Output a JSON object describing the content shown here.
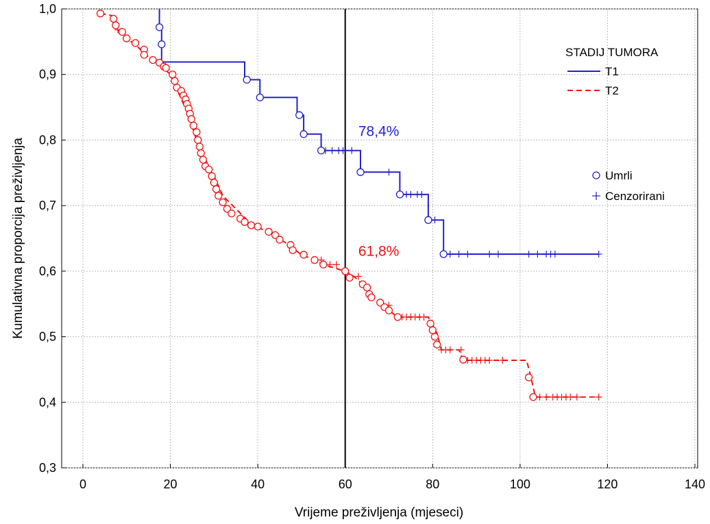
{
  "chart_data": {
    "type": "line",
    "title": "",
    "xlabel": "Vrijeme preživljenja (mjeseci)",
    "ylabel": "Kumulativna proporcija preživljenja",
    "xlim": [
      0,
      140
    ],
    "ylim": [
      0.3,
      1.0
    ],
    "x_ticks": [
      0,
      20,
      40,
      60,
      80,
      100,
      120,
      140
    ],
    "x_tick_labels": [
      "0",
      "20",
      "40",
      "60",
      "80",
      "100",
      "120",
      "140"
    ],
    "y_ticks": [
      0.3,
      0.4,
      0.5,
      0.6,
      0.7,
      0.8,
      0.9,
      1.0
    ],
    "y_tick_labels": [
      "0,3",
      "0,4",
      "0,5",
      "0,6",
      "0,7",
      "0,8",
      "0,9",
      "1,0"
    ],
    "grid": true,
    "vertical_reference_line_x": 60,
    "legend_title": "STADIJ TUMORA",
    "legend_placement": "top-right",
    "marker_legend": [
      {
        "symbol": "circle",
        "label": "Umrli"
      },
      {
        "symbol": "plus",
        "label": "Cenzorirani"
      }
    ],
    "annotations": [
      {
        "text": "78,4%",
        "x": 63,
        "y": 0.8,
        "color": "#2222dd"
      },
      {
        "text": "61,8%",
        "x": 63,
        "y": 0.617,
        "color": "#ee1111"
      }
    ],
    "series": [
      {
        "name": "T1",
        "color": "#2222cc",
        "dash": "solid",
        "step_x": [
          17.5,
          17.5,
          18,
          18,
          37,
          37,
          40.5,
          40.5,
          49,
          49,
          50.5,
          50.5,
          54.5,
          54.5,
          63.5,
          63.5,
          72.5,
          72.5,
          79,
          79,
          82.5,
          82.5,
          118
        ],
        "step_y": [
          1.0,
          0.972,
          0.972,
          0.919,
          0.919,
          0.892,
          0.892,
          0.865,
          0.865,
          0.838,
          0.838,
          0.809,
          0.809,
          0.784,
          0.784,
          0.751,
          0.751,
          0.717,
          0.717,
          0.678,
          0.678,
          0.626,
          0.626
        ],
        "deaths_x": [
          17.5,
          18,
          37.5,
          40.5,
          49.5,
          50.5,
          54.5,
          63.5,
          72.5,
          79,
          82.5
        ],
        "deaths_y": [
          0.972,
          0.946,
          0.892,
          0.865,
          0.838,
          0.809,
          0.784,
          0.751,
          0.717,
          0.678,
          0.626
        ],
        "censored_x": [
          55.5,
          57,
          58.5,
          59.5,
          61.5,
          70,
          74,
          75,
          76.5,
          77.5,
          80.5,
          84,
          86,
          88,
          93,
          95,
          102,
          104,
          106,
          107,
          108,
          118
        ],
        "censored_y": [
          0.784,
          0.784,
          0.784,
          0.784,
          0.784,
          0.751,
          0.717,
          0.717,
          0.717,
          0.717,
          0.678,
          0.626,
          0.626,
          0.626,
          0.626,
          0.626,
          0.626,
          0.626,
          0.626,
          0.626,
          0.626,
          0.626
        ]
      },
      {
        "name": "T2",
        "color": "#ee1111",
        "dash": "dashed",
        "step_x": [
          4,
          6.5,
          7.5,
          9,
          12,
          14,
          16,
          18,
          20,
          22,
          24,
          26,
          28,
          30,
          32,
          35,
          38,
          42,
          46,
          48,
          50,
          53,
          55,
          60,
          62,
          64,
          66,
          68,
          70,
          72,
          79,
          80,
          81,
          82,
          86,
          87,
          101.5,
          102.5,
          103.5,
          118
        ],
        "step_y": [
          0.993,
          0.99,
          0.975,
          0.958,
          0.946,
          0.932,
          0.922,
          0.912,
          0.9,
          0.87,
          0.84,
          0.8,
          0.77,
          0.745,
          0.715,
          0.695,
          0.675,
          0.66,
          0.645,
          0.635,
          0.625,
          0.617,
          0.61,
          0.6,
          0.592,
          0.58,
          0.565,
          0.55,
          0.54,
          0.53,
          0.53,
          0.518,
          0.505,
          0.48,
          0.48,
          0.464,
          0.464,
          0.438,
          0.408,
          0.408
        ],
        "deaths_x": [
          4,
          7,
          7.5,
          9,
          10,
          12,
          14,
          14,
          16,
          17.5,
          18.5,
          19,
          20.5,
          21,
          21.5,
          22.5,
          23,
          23.5,
          23.8,
          24.2,
          24.5,
          24.8,
          25.3,
          26,
          26.3,
          26.7,
          27,
          27.5,
          28,
          28.8,
          29.5,
          30,
          30.5,
          31,
          32,
          33,
          34,
          36,
          37,
          38.5,
          40,
          42.5,
          44,
          45,
          47.5,
          48,
          50.5,
          53,
          55,
          60,
          61,
          64,
          65,
          65.5,
          66,
          68,
          69,
          70,
          72,
          79.5,
          80,
          80.5,
          81,
          87,
          102,
          103
        ],
        "deaths_y": [
          0.993,
          0.985,
          0.975,
          0.965,
          0.955,
          0.948,
          0.938,
          0.93,
          0.922,
          0.918,
          0.912,
          0.91,
          0.9,
          0.89,
          0.88,
          0.875,
          0.868,
          0.862,
          0.855,
          0.848,
          0.84,
          0.832,
          0.822,
          0.812,
          0.8,
          0.79,
          0.78,
          0.77,
          0.76,
          0.755,
          0.745,
          0.735,
          0.725,
          0.715,
          0.705,
          0.695,
          0.688,
          0.68,
          0.675,
          0.67,
          0.668,
          0.66,
          0.655,
          0.648,
          0.64,
          0.632,
          0.625,
          0.617,
          0.61,
          0.6,
          0.59,
          0.58,
          0.575,
          0.565,
          0.56,
          0.552,
          0.545,
          0.54,
          0.53,
          0.52,
          0.51,
          0.5,
          0.488,
          0.465,
          0.438,
          0.408
        ],
        "censored_x": [
          8,
          54.5,
          56.5,
          58,
          63,
          70,
          73,
          74,
          75,
          76,
          77,
          78,
          82,
          83,
          84,
          86.5,
          88,
          89,
          90,
          91,
          92,
          93,
          96,
          104.5,
          106,
          107.5,
          108.5,
          109.5,
          110.5,
          111.5,
          113,
          118
        ],
        "censored_y": [
          0.968,
          0.617,
          0.61,
          0.61,
          0.592,
          0.548,
          0.53,
          0.53,
          0.53,
          0.53,
          0.53,
          0.53,
          0.48,
          0.48,
          0.48,
          0.48,
          0.464,
          0.464,
          0.464,
          0.464,
          0.464,
          0.464,
          0.464,
          0.408,
          0.408,
          0.408,
          0.408,
          0.408,
          0.408,
          0.408,
          0.408,
          0.408
        ]
      }
    ]
  }
}
